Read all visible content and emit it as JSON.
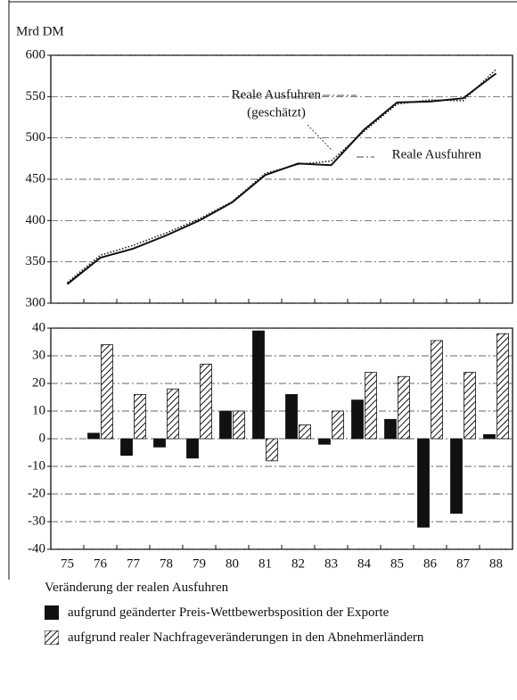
{
  "chart_data": [
    {
      "type": "line",
      "axis_label": "Mrd DM",
      "ylim": [
        300,
        600
      ],
      "yticks": [
        300,
        350,
        400,
        450,
        500,
        550,
        600
      ],
      "grid": true,
      "series": [
        {
          "name": "Reale Ausfuhren",
          "color": "#111111",
          "dash": "solid",
          "values": [
            323,
            355,
            366,
            382,
            400,
            422,
            455,
            469,
            467,
            510,
            543,
            544,
            548,
            578
          ]
        },
        {
          "name": "Reale Ausfuhren",
          "note": "(geschätzt)",
          "color": "#111111",
          "dash": "dotted",
          "values": [
            325,
            358,
            370,
            385,
            402,
            423,
            457,
            468,
            472,
            508,
            541,
            546,
            545,
            583
          ]
        }
      ]
    },
    {
      "type": "bar",
      "legend_title": "Veränderung der realen Ausfuhren",
      "categories": [
        "75",
        "76",
        "77",
        "78",
        "79",
        "80",
        "81",
        "82",
        "83",
        "84",
        "85",
        "86",
        "87",
        "88"
      ],
      "ylim": [
        -40,
        40
      ],
      "yticks": [
        -40,
        -30,
        -20,
        -10,
        0,
        10,
        20,
        30,
        40
      ],
      "grid": true,
      "series": [
        {
          "name": "aufgrund geänderter Preis-Wettbewerbsposition der Exporte",
          "color": "#111111",
          "hatch": false,
          "values": [
            null,
            2,
            -6,
            -3,
            -7,
            10,
            39,
            16,
            -2,
            14,
            7,
            -32,
            -27,
            1.5
          ]
        },
        {
          "name": "aufgrund realer Nachfrageveränderungen in den Abnehmerländern",
          "color": "#111111",
          "hatch": true,
          "values": [
            null,
            34,
            16,
            18,
            27,
            10,
            -8,
            5,
            10,
            24,
            22.5,
            35.5,
            24,
            38
          ]
        }
      ]
    }
  ]
}
